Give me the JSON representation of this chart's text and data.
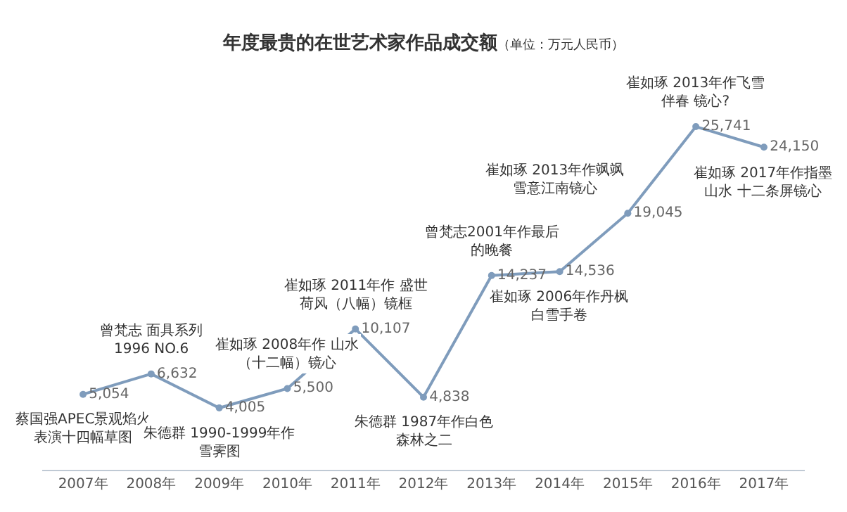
{
  "chart_data": {
    "type": "line",
    "title": "年度最贵的在世艺术家作品成交额",
    "subtitle": "（单位：万元人民币）",
    "categories": [
      "2007年",
      "2008年",
      "2009年",
      "2010年",
      "2011年",
      "2012年",
      "2013年",
      "2014年",
      "2015年",
      "2016年",
      "2017年"
    ],
    "series": [
      {
        "color": "#7f9cbc",
        "values": [
          5054,
          6632,
          4005,
          5500,
          10107,
          4838,
          14237,
          14536,
          19045,
          25741,
          24150
        ],
        "value_labels": [
          "5,054",
          "6,632",
          "4,005",
          "5,500",
          "10,107",
          "4,838",
          "14,237",
          "14,536",
          "19,045",
          "25,741",
          "24,150"
        ]
      }
    ],
    "annotations": [
      {
        "text": "蔡国强APEC景观焰火表演十四幅草图",
        "x": "2007年",
        "y": 5054
      },
      {
        "text": "曾梵志 面具系列1996 NO.6",
        "x": "2008年",
        "y": 6632
      },
      {
        "text": "朱德群 1990-1999年作雪霁图",
        "x": "2009年",
        "y": 4005
      },
      {
        "text": "崔如琢 2008年作 山水（十二幅）镜心",
        "x": "2010年",
        "y": 5500
      },
      {
        "text": "崔如琢 2011年作 盛世荷风（八幅）镜框",
        "x": "2011年",
        "y": 10107
      },
      {
        "text": "朱德群 1987年作白色森林之二",
        "x": "2012年",
        "y": 4838
      },
      {
        "text": "曾梵志2001年作最后的晚餐",
        "x": "2013年",
        "y": 14237
      },
      {
        "text": "崔如琢 2006年作丹枫白雪手卷",
        "x": "2014年",
        "y": 14536
      },
      {
        "text": "崔如琢 2013年作飒飒雪意江南镜心",
        "x": "2015年",
        "y": 19045
      },
      {
        "text": "崔如琢 2013年作飞雪伴春 镜心?",
        "x": "2016年",
        "y": 25741
      },
      {
        "text": "崔如琢 2017年作指墨山水 十二条屏镜心",
        "x": "2017年",
        "y": 24150
      }
    ],
    "marker": "circle",
    "line_style": "solid"
  }
}
